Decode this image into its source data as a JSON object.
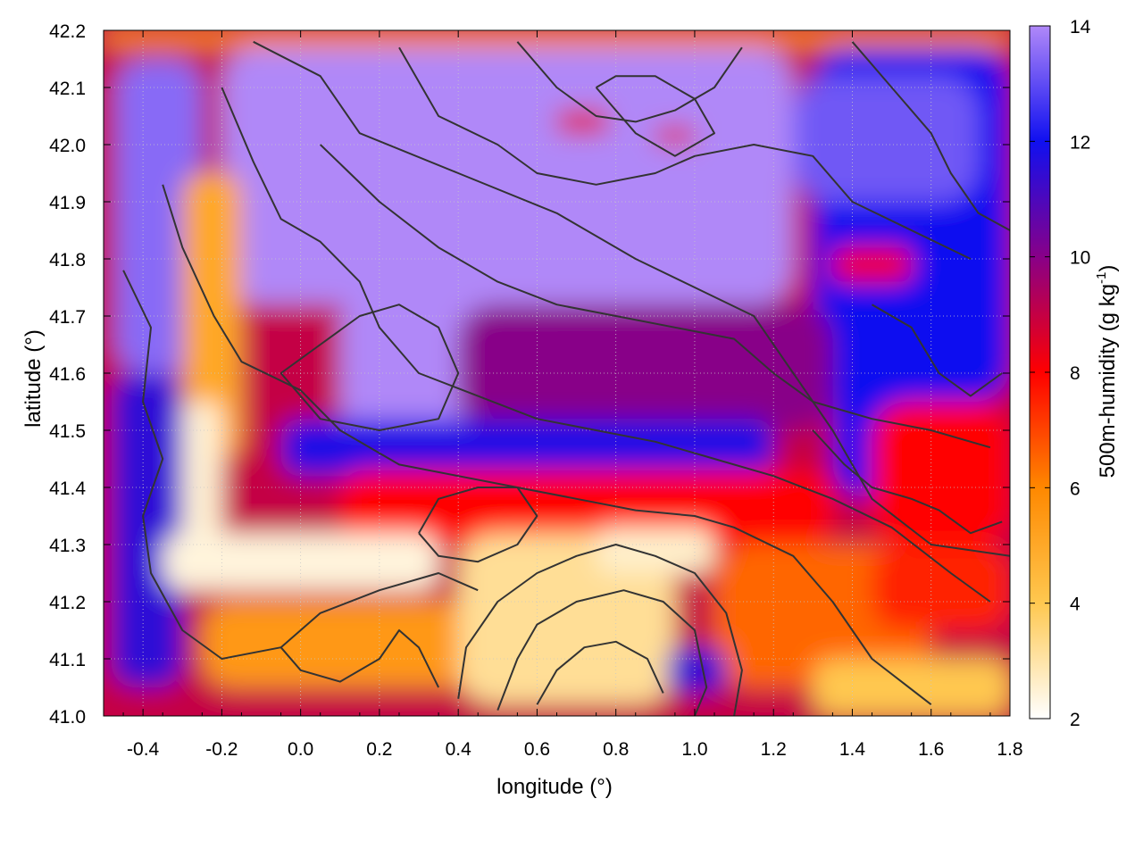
{
  "chart_data": {
    "type": "heatmap",
    "title": "",
    "xlabel": "longitude (°)",
    "ylabel": "latitude (°)",
    "colorbar_label_main": "500m-humidity (g kg",
    "colorbar_label_sup": "-1",
    "colorbar_label_close": ")",
    "xlim": [
      -0.5,
      1.8
    ],
    "ylim": [
      41.0,
      42.2
    ],
    "zlim": [
      2,
      14
    ],
    "x_ticks": [
      -0.4,
      -0.2,
      0.0,
      0.2,
      0.4,
      0.6,
      0.8,
      1.0,
      1.2,
      1.4,
      1.6,
      1.8
    ],
    "x_tick_labels": [
      "-0.4",
      "-0.2",
      "0.0",
      "0.2",
      "0.4",
      "0.6",
      "0.8",
      "1.0",
      "1.2",
      "1.4",
      "1.6",
      "1.8"
    ],
    "y_ticks": [
      41.0,
      41.1,
      41.2,
      41.3,
      41.4,
      41.5,
      41.6,
      41.7,
      41.8,
      41.9,
      42.0,
      42.1,
      42.2
    ],
    "y_tick_labels": [
      "41.0",
      "41.1",
      "41.2",
      "41.3",
      "41.4",
      "41.5",
      "41.6",
      "41.7",
      "41.8",
      "41.9",
      "42.0",
      "42.1",
      "42.2"
    ],
    "colorbar_ticks": [
      2,
      4,
      6,
      8,
      10,
      12,
      14
    ],
    "colorbar_tick_labels": [
      "2",
      "4",
      "6",
      "8",
      "10",
      "12",
      "14"
    ],
    "colormap": [
      {
        "value": 2,
        "color": "#ffffff"
      },
      {
        "value": 4,
        "color": "#ffc850"
      },
      {
        "value": 6,
        "color": "#ff8800"
      },
      {
        "value": 8,
        "color": "#ff0000"
      },
      {
        "value": 10,
        "color": "#880088"
      },
      {
        "value": 12,
        "color": "#1010f0"
      },
      {
        "value": 14,
        "color": "#b088f8"
      }
    ],
    "grid": true,
    "contours_color": "#333333",
    "regions": [
      {
        "name": "whole-domain",
        "lon": [
          -0.5,
          1.8
        ],
        "lat": [
          41.0,
          42.2
        ],
        "value": 9
      },
      {
        "name": "north-dry-strip",
        "lon": [
          -0.5,
          1.8
        ],
        "lat": [
          42.17,
          42.2
        ],
        "value": 6
      },
      {
        "name": "northeast-blue",
        "lon": [
          1.3,
          1.8
        ],
        "lat": [
          41.55,
          42.17
        ],
        "value": 12
      },
      {
        "name": "north-moist-plateau",
        "lon": [
          -0.2,
          1.25
        ],
        "lat": [
          41.72,
          42.17
        ],
        "value": 14
      },
      {
        "name": "northeast-moist",
        "lon": [
          1.25,
          1.72
        ],
        "lat": [
          41.9,
          42.12
        ],
        "value": 13.2
      },
      {
        "name": "central-moist-tongue",
        "lon": [
          0.1,
          0.7
        ],
        "lat": [
          41.48,
          41.75
        ],
        "value": 14
      },
      {
        "name": "central-purple-band",
        "lon": [
          0.4,
          1.35
        ],
        "lat": [
          41.5,
          41.72
        ],
        "value": 10
      },
      {
        "name": "central-blue-band",
        "lon": [
          -0.05,
          1.2
        ],
        "lat": [
          41.42,
          41.52
        ],
        "value": 11.8
      },
      {
        "name": "east-blue",
        "lon": [
          1.35,
          1.7
        ],
        "lat": [
          41.38,
          41.62
        ],
        "value": 12
      },
      {
        "name": "east-red",
        "lon": [
          1.45,
          1.8
        ],
        "lat": [
          41.3,
          41.55
        ],
        "value": 8
      },
      {
        "name": "west-moist-column",
        "lon": [
          -0.47,
          -0.25
        ],
        "lat": [
          41.6,
          42.15
        ],
        "value": 13.5
      },
      {
        "name": "west-blue-column",
        "lon": [
          -0.48,
          -0.3
        ],
        "lat": [
          41.05,
          41.6
        ],
        "value": 11.5
      },
      {
        "name": "west-dry-band",
        "lon": [
          -0.3,
          -0.15
        ],
        "lat": [
          41.45,
          41.95
        ],
        "value": 5
      },
      {
        "name": "southwest-dry-column",
        "lon": [
          -0.3,
          -0.2
        ],
        "lat": [
          41.3,
          41.55
        ],
        "value": 2.5
      },
      {
        "name": "south-red-band",
        "lon": [
          0.1,
          1.35
        ],
        "lat": [
          41.3,
          41.43
        ],
        "value": 8
      },
      {
        "name": "south-dry-band",
        "lon": [
          -0.35,
          0.35
        ],
        "lat": [
          41.22,
          41.32
        ],
        "value": 2.4
      },
      {
        "name": "south-orange-band",
        "lon": [
          -0.25,
          0.55
        ],
        "lat": [
          41.05,
          41.2
        ],
        "value": 5.5
      },
      {
        "name": "south-center-dry",
        "lon": [
          0.4,
          0.95
        ],
        "lat": [
          41.02,
          41.32
        ],
        "value": 3.2
      },
      {
        "name": "south-center-pale",
        "lon": [
          0.75,
          1.05
        ],
        "lat": [
          41.25,
          41.33
        ],
        "value": 2.6
      },
      {
        "name": "southeast-orange",
        "lon": [
          1.05,
          1.6
        ],
        "lat": [
          41.05,
          41.3
        ],
        "value": 6.5
      },
      {
        "name": "southeast-red",
        "lon": [
          1.45,
          1.8
        ],
        "lat": [
          41.15,
          41.3
        ],
        "value": 7.5
      },
      {
        "name": "southeast-dry",
        "lon": [
          1.3,
          1.8
        ],
        "lat": [
          41.0,
          41.1
        ],
        "value": 4
      },
      {
        "name": "southeast-blue-spot",
        "lon": [
          0.93,
          1.08
        ],
        "lat": [
          41.04,
          41.12
        ],
        "value": 11.5
      },
      {
        "name": "north-red-spot-1",
        "lon": [
          0.65,
          0.78
        ],
        "lat": [
          42.02,
          42.06
        ],
        "value": 8.5
      },
      {
        "name": "north-red-spot-2",
        "lon": [
          0.9,
          1.0
        ],
        "lat": [
          42.0,
          42.03
        ],
        "value": 8.5
      },
      {
        "name": "northeast-red-streak",
        "lon": [
          1.35,
          1.55
        ],
        "lat": [
          41.76,
          41.82
        ],
        "value": 8.2
      }
    ],
    "contours": [
      [
        [
          -0.12,
          42.18
        ],
        [
          0.05,
          42.12
        ],
        [
          0.15,
          42.02
        ],
        [
          0.4,
          41.95
        ],
        [
          0.65,
          41.88
        ],
        [
          0.85,
          41.8
        ],
        [
          1.0,
          41.75
        ],
        [
          1.15,
          41.7
        ],
        [
          1.25,
          41.6
        ],
        [
          1.35,
          41.5
        ],
        [
          1.45,
          41.38
        ],
        [
          1.6,
          41.3
        ],
        [
          1.8,
          41.28
        ]
      ],
      [
        [
          -0.35,
          41.93
        ],
        [
          -0.3,
          41.82
        ],
        [
          -0.22,
          41.7
        ],
        [
          -0.15,
          41.62
        ],
        [
          0.0,
          41.57
        ],
        [
          0.1,
          41.5
        ],
        [
          0.25,
          41.44
        ],
        [
          0.4,
          41.42
        ],
        [
          0.55,
          41.4
        ],
        [
          0.7,
          41.38
        ],
        [
          0.85,
          41.36
        ],
        [
          1.0,
          41.35
        ],
        [
          1.1,
          41.33
        ],
        [
          1.25,
          41.28
        ],
        [
          1.35,
          41.2
        ],
        [
          1.45,
          41.1
        ],
        [
          1.6,
          41.02
        ]
      ],
      [
        [
          -0.2,
          42.1
        ],
        [
          -0.12,
          41.97
        ],
        [
          -0.05,
          41.87
        ],
        [
          0.05,
          41.83
        ],
        [
          0.15,
          41.76
        ],
        [
          0.2,
          41.68
        ],
        [
          0.3,
          41.6
        ],
        [
          0.45,
          41.56
        ],
        [
          0.6,
          41.52
        ],
        [
          0.75,
          41.5
        ],
        [
          0.9,
          41.48
        ],
        [
          1.05,
          41.45
        ],
        [
          1.2,
          41.42
        ],
        [
          1.35,
          41.38
        ],
        [
          1.5,
          41.33
        ],
        [
          1.65,
          41.25
        ],
        [
          1.75,
          41.2
        ]
      ],
      [
        [
          0.05,
          42.0
        ],
        [
          0.2,
          41.9
        ],
        [
          0.35,
          41.82
        ],
        [
          0.5,
          41.76
        ],
        [
          0.65,
          41.72
        ],
        [
          0.8,
          41.7
        ],
        [
          0.95,
          41.68
        ],
        [
          1.1,
          41.66
        ],
        [
          1.2,
          41.6
        ],
        [
          1.3,
          41.55
        ],
        [
          1.45,
          41.52
        ],
        [
          1.6,
          41.5
        ],
        [
          1.75,
          41.47
        ]
      ],
      [
        [
          0.25,
          42.17
        ],
        [
          0.35,
          42.05
        ],
        [
          0.5,
          42.0
        ],
        [
          0.6,
          41.95
        ],
        [
          0.75,
          41.93
        ],
        [
          0.9,
          41.95
        ],
        [
          1.0,
          41.98
        ],
        [
          1.15,
          42.0
        ],
        [
          1.3,
          41.98
        ],
        [
          1.4,
          41.9
        ],
        [
          1.55,
          41.85
        ],
        [
          1.7,
          41.8
        ]
      ],
      [
        [
          0.55,
          42.18
        ],
        [
          0.65,
          42.1
        ],
        [
          0.75,
          42.05
        ],
        [
          0.85,
          42.04
        ],
        [
          0.95,
          42.06
        ],
        [
          1.05,
          42.1
        ],
        [
          1.12,
          42.17
        ]
      ],
      [
        [
          -0.45,
          41.78
        ],
        [
          -0.38,
          41.68
        ],
        [
          -0.4,
          41.55
        ],
        [
          -0.35,
          41.45
        ],
        [
          -0.4,
          41.35
        ],
        [
          -0.38,
          41.25
        ],
        [
          -0.3,
          41.15
        ],
        [
          -0.2,
          41.1
        ],
        [
          -0.05,
          41.12
        ],
        [
          0.05,
          41.18
        ],
        [
          0.2,
          41.22
        ],
        [
          0.35,
          41.25
        ],
        [
          0.45,
          41.22
        ]
      ],
      [
        [
          0.4,
          41.03
        ],
        [
          0.42,
          41.12
        ],
        [
          0.5,
          41.2
        ],
        [
          0.6,
          41.25
        ],
        [
          0.7,
          41.28
        ],
        [
          0.8,
          41.3
        ],
        [
          0.9,
          41.28
        ],
        [
          1.0,
          41.25
        ],
        [
          1.08,
          41.18
        ],
        [
          1.12,
          41.08
        ],
        [
          1.1,
          41.0
        ]
      ],
      [
        [
          0.5,
          41.01
        ],
        [
          0.55,
          41.1
        ],
        [
          0.6,
          41.16
        ],
        [
          0.7,
          41.2
        ],
        [
          0.82,
          41.22
        ],
        [
          0.92,
          41.2
        ],
        [
          1.0,
          41.15
        ],
        [
          1.03,
          41.05
        ],
        [
          1.0,
          41.0
        ]
      ],
      [
        [
          0.6,
          41.02
        ],
        [
          0.65,
          41.08
        ],
        [
          0.72,
          41.12
        ],
        [
          0.8,
          41.13
        ],
        [
          0.88,
          41.1
        ],
        [
          0.92,
          41.04
        ]
      ],
      [
        [
          1.4,
          42.18
        ],
        [
          1.5,
          42.1
        ],
        [
          1.6,
          42.02
        ],
        [
          1.65,
          41.95
        ],
        [
          1.72,
          41.88
        ],
        [
          1.8,
          41.85
        ]
      ],
      [
        [
          1.45,
          41.72
        ],
        [
          1.55,
          41.68
        ],
        [
          1.62,
          41.6
        ],
        [
          1.7,
          41.56
        ],
        [
          1.78,
          41.6
        ]
      ],
      [
        [
          1.3,
          41.5
        ],
        [
          1.38,
          41.44
        ],
        [
          1.45,
          41.4
        ],
        [
          1.55,
          41.38
        ],
        [
          1.62,
          41.36
        ],
        [
          1.7,
          41.32
        ],
        [
          1.78,
          41.34
        ]
      ],
      [
        [
          -0.05,
          41.12
        ],
        [
          0.0,
          41.08
        ],
        [
          0.1,
          41.06
        ],
        [
          0.2,
          41.1
        ],
        [
          0.25,
          41.15
        ],
        [
          0.3,
          41.12
        ],
        [
          0.35,
          41.05
        ]
      ],
      [
        [
          0.3,
          41.32
        ],
        [
          0.35,
          41.28
        ],
        [
          0.45,
          41.27
        ],
        [
          0.55,
          41.3
        ],
        [
          0.6,
          41.35
        ],
        [
          0.55,
          41.4
        ],
        [
          0.45,
          41.4
        ],
        [
          0.35,
          41.38
        ],
        [
          0.3,
          41.32
        ]
      ],
      [
        [
          0.75,
          42.1
        ],
        [
          0.85,
          42.02
        ],
        [
          0.95,
          41.98
        ],
        [
          1.05,
          42.02
        ],
        [
          1.0,
          42.08
        ],
        [
          0.9,
          42.12
        ],
        [
          0.8,
          42.12
        ],
        [
          0.75,
          42.1
        ]
      ],
      [
        [
          -0.05,
          41.6
        ],
        [
          0.05,
          41.65
        ],
        [
          0.15,
          41.7
        ],
        [
          0.25,
          41.72
        ],
        [
          0.35,
          41.68
        ],
        [
          0.4,
          41.6
        ],
        [
          0.35,
          41.52
        ],
        [
          0.2,
          41.5
        ],
        [
          0.05,
          41.52
        ],
        [
          -0.05,
          41.6
        ]
      ]
    ]
  }
}
